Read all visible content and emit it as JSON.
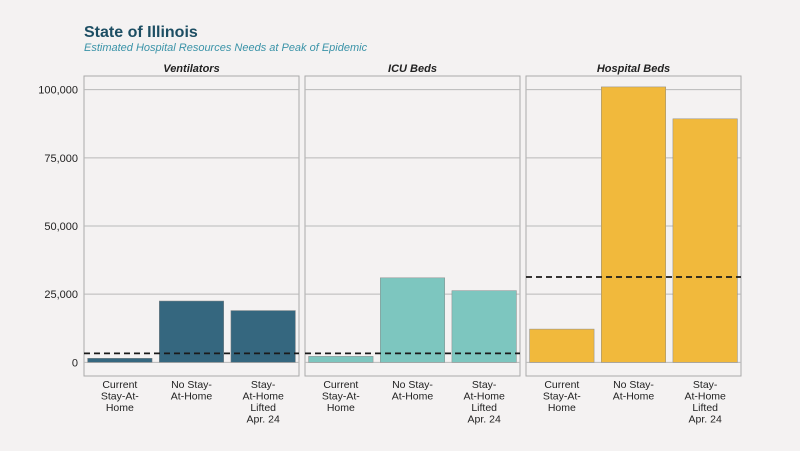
{
  "chart_data": {
    "type": "bar",
    "title": "State of Illinois",
    "subtitle": "Estimated Hospital Resources Needs at Peak of Epidemic",
    "categories": [
      "Current Stay-At-Home",
      "No Stay-At-Home",
      "Stay-At-Home Lifted Apr. 24"
    ],
    "category_label_lines": [
      [
        "Current",
        "Stay-At-",
        "Home"
      ],
      [
        "No Stay-",
        "At-Home"
      ],
      [
        "Stay-",
        "At-Home",
        "Lifted",
        "Apr. 24"
      ]
    ],
    "ylim": [
      -5000,
      105000
    ],
    "y_ticks": [
      0,
      25000,
      50000,
      75000,
      100000
    ],
    "y_tick_labels": [
      "0",
      "25,000",
      "50,000",
      "75,000",
      "100,000"
    ],
    "grid": true,
    "panels": [
      {
        "name": "Ventilators",
        "values": [
          1500,
          22500,
          19000
        ],
        "capacity": 3300,
        "color": "#35677f"
      },
      {
        "name": "ICU Beds",
        "values": [
          2200,
          31000,
          26300
        ],
        "capacity": 3300,
        "color": "#7dc6bf"
      },
      {
        "name": "Hospital Beds",
        "values": [
          12200,
          101000,
          89300
        ],
        "capacity": 31300,
        "color": "#f1b93c"
      }
    ]
  }
}
